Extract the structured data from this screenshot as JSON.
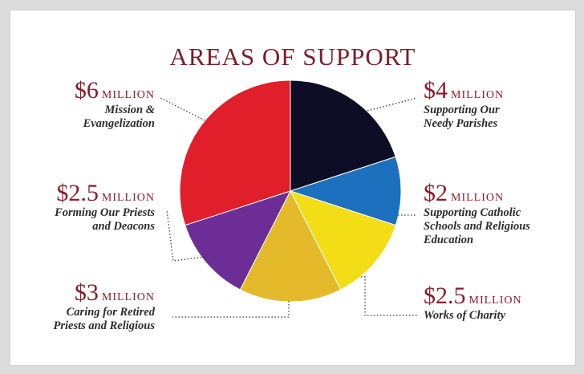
{
  "chart_data": {
    "type": "pie",
    "title": "AREAS OF SUPPORT",
    "unit": "MILLION",
    "slices": [
      {
        "amount_label": "$4",
        "value": 4,
        "label_lines": [
          "Supporting Our",
          "Needy Parishes"
        ],
        "color": "#0d0e26"
      },
      {
        "amount_label": "$2",
        "value": 2,
        "label_lines": [
          "Supporting Catholic",
          "Schools and Religious",
          "Education"
        ],
        "color": "#1d70bd"
      },
      {
        "amount_label": "$2.5",
        "value": 2.5,
        "label_lines": [
          "Works of Charity"
        ],
        "color": "#f3dd17"
      },
      {
        "amount_label": "$3",
        "value": 3,
        "label_lines": [
          "Caring for Retired",
          "Priests and Religious"
        ],
        "color": "#e4b92a"
      },
      {
        "amount_label": "$2.5",
        "value": 2.5,
        "label_lines": [
          "Forming Our Priests",
          "and Deacons"
        ],
        "color": "#6c2e96"
      },
      {
        "amount_label": "$6",
        "value": 6,
        "label_lines": [
          "Mission &",
          "Evangelization"
        ],
        "color": "#e01f2b"
      }
    ]
  }
}
